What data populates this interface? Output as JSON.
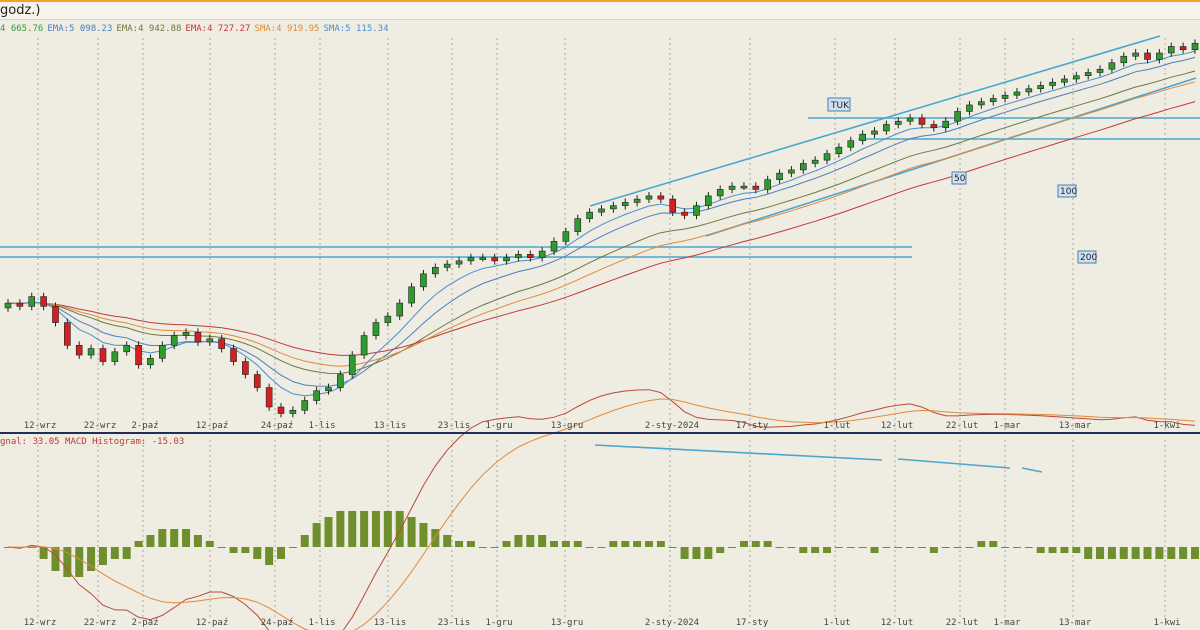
{
  "window": {
    "title": "godz.)"
  },
  "legend": [
    {
      "text": "4 665.76",
      "color": "#3a9a3a"
    },
    {
      "text": "EMA:5 098.23",
      "color": "#4a7fc0"
    },
    {
      "text": "EMA:4 942.88",
      "color": "#6b7a3e"
    },
    {
      "text": "EMA:4 727.27",
      "color": "#c03a3a"
    },
    {
      "text": "SMA:4 919.95",
      "color": "#e08a3a"
    },
    {
      "text": "SMA:5 115.34",
      "color": "#4a8fd0"
    }
  ],
  "macd_legend": [
    {
      "text": "gnal: 33.05",
      "color": "#c03a3a"
    },
    {
      "text": "MACD Histogram: -15.03",
      "color": "#c03a3a"
    }
  ],
  "annotations": {
    "tuk": "TUK",
    "ma50": "50",
    "ma100": "100",
    "ma200": "200"
  },
  "colors": {
    "up": "#2f9a2f",
    "down": "#d42020",
    "channel": "#4aa6cf",
    "histogram": "#6f8f2e",
    "macd": "#b84a3a",
    "signal": "#e08a3a",
    "grid": "#8a8a8a",
    "separator": "#1e2f5a"
  },
  "chart_data": [
    {
      "type": "candlestick",
      "title": "",
      "x_ticks": [
        "12-wrz",
        "22-wrz",
        "2-paź",
        "12-paź",
        "24-paź",
        "1-lis",
        "13-lis",
        "23-lis",
        "1-gru",
        "13-gru",
        "2-sty-2024",
        "17-sty",
        "1-lut",
        "12-lut",
        "22-lut",
        "1-mar",
        "13-mar",
        "1-kwi"
      ],
      "close": [
        4460,
        4450,
        4480,
        4450,
        4400,
        4330,
        4300,
        4320,
        4280,
        4310,
        4330,
        4270,
        4290,
        4330,
        4360,
        4370,
        4340,
        4350,
        4320,
        4280,
        4240,
        4200,
        4140,
        4120,
        4130,
        4160,
        4190,
        4200,
        4240,
        4300,
        4360,
        4400,
        4420,
        4460,
        4510,
        4550,
        4570,
        4580,
        4590,
        4600,
        4600,
        4590,
        4600,
        4610,
        4600,
        4620,
        4650,
        4680,
        4720,
        4740,
        4750,
        4760,
        4770,
        4780,
        4790,
        4780,
        4740,
        4730,
        4760,
        4790,
        4810,
        4820,
        4820,
        4810,
        4840,
        4860,
        4870,
        4890,
        4900,
        4920,
        4940,
        4960,
        4980,
        4990,
        5010,
        5020,
        5030,
        5010,
        5000,
        5020,
        5050,
        5070,
        5080,
        5090,
        5100,
        5110,
        5120,
        5130,
        5140,
        5150,
        5160,
        5170,
        5180,
        5200,
        5220,
        5230,
        5210,
        5230,
        5250,
        5240,
        5260
      ],
      "indicators": [
        "EMA",
        "EMA",
        "EMA",
        "SMA",
        "SMA"
      ]
    },
    {
      "type": "bar",
      "title": "MACD",
      "series": [
        {
          "name": "MACD Histogram",
          "values": [
            0,
            0,
            0,
            -2,
            -4,
            -5,
            -5,
            -4,
            -3,
            -2,
            -2,
            1,
            2,
            3,
            3,
            3,
            2,
            1,
            0,
            -1,
            -1,
            -2,
            -3,
            -2,
            0,
            2,
            4,
            5,
            6,
            6,
            6,
            6,
            6,
            6,
            5,
            4,
            3,
            2,
            1,
            1,
            0,
            0,
            1,
            2,
            2,
            2,
            1,
            1,
            1,
            0,
            0,
            1,
            1,
            1,
            1,
            1,
            0,
            -2,
            -2,
            -2,
            -1,
            0,
            1,
            1,
            1,
            0,
            0,
            -1,
            -1,
            -1,
            0,
            0,
            0,
            -1,
            0,
            0,
            0,
            0,
            -1,
            0,
            0,
            0,
            1,
            1,
            0,
            0,
            0,
            -1,
            -1,
            -1,
            -1,
            -2,
            -2,
            -2,
            -2,
            -2,
            -2,
            -2,
            -2,
            -2,
            -2
          ]
        }
      ]
    }
  ]
}
